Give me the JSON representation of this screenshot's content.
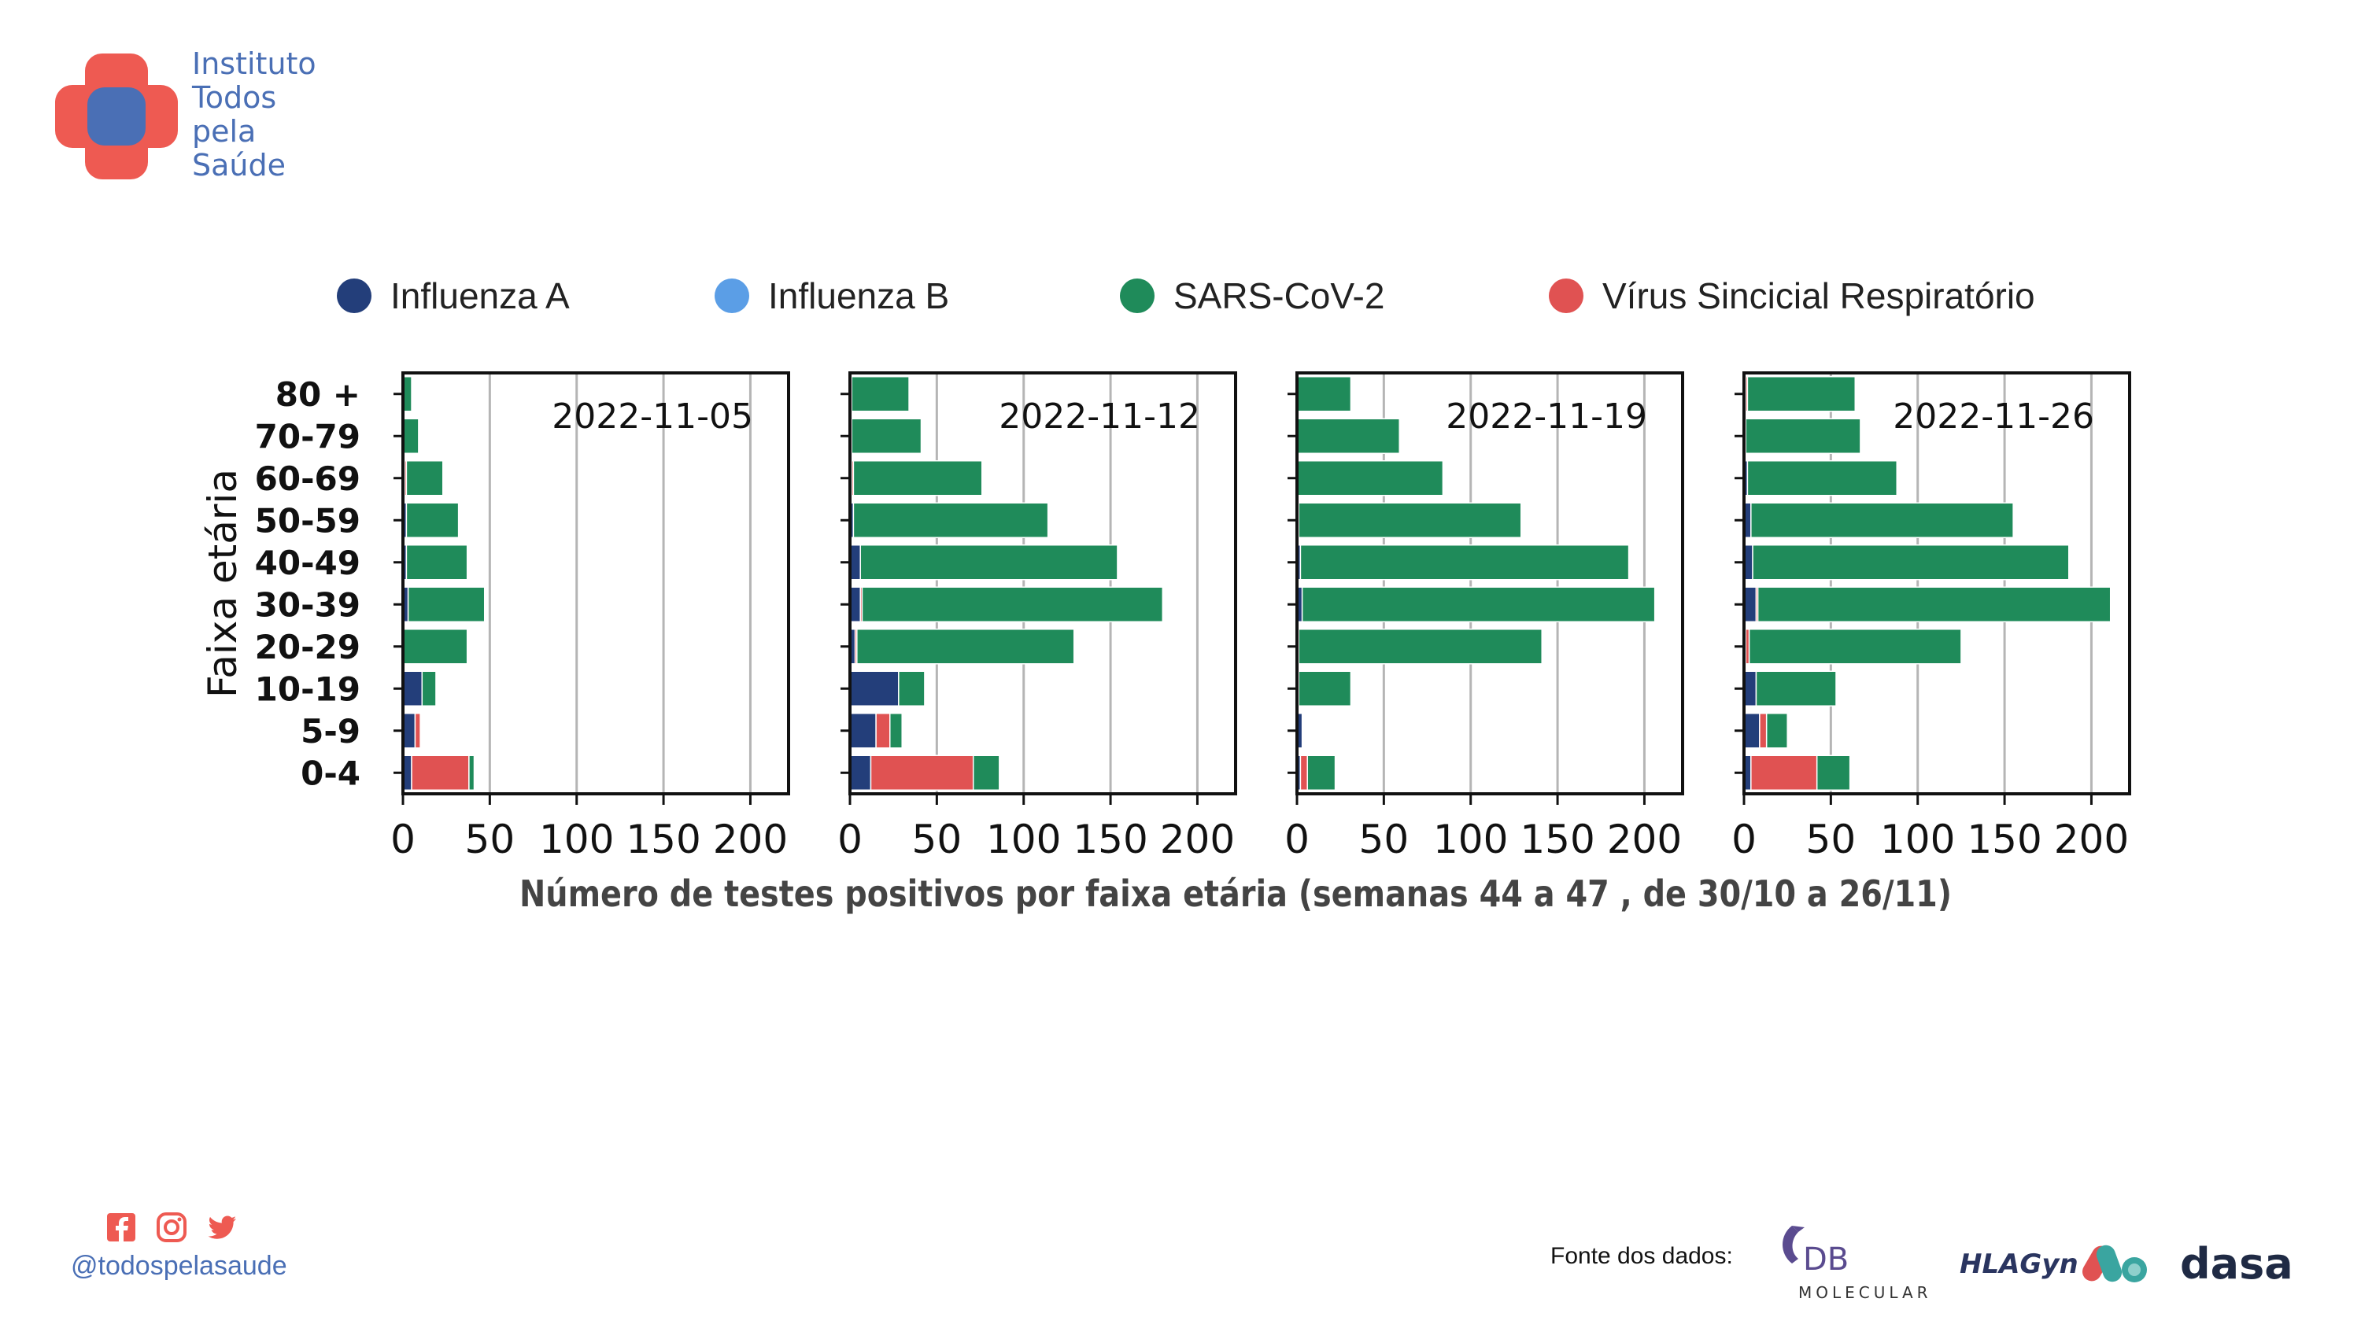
{
  "header": {
    "logo_text": [
      "Instituto",
      "Todos",
      "pela",
      "Saúde"
    ],
    "colors": {
      "red": "#ee5a52",
      "blue": "#4a6fb5"
    }
  },
  "footer": {
    "social_icons": [
      "facebook-icon",
      "instagram-icon",
      "twitter-icon"
    ],
    "handle": "@todospelasaude",
    "sources_label": "Fonte dos dados:",
    "source_logos": [
      {
        "name": "db-molecular-logo",
        "text": "DB MOLECULAR"
      },
      {
        "name": "hlagyn-logo",
        "text": "HLAGyn"
      },
      {
        "name": "dasa-logo",
        "text": "DASA"
      }
    ]
  },
  "chart_data": {
    "type": "bar",
    "orientation": "horizontal",
    "stacked": true,
    "ylabel": "Faixa etária",
    "xlabel": "Número de testes positivos por faixa etária (semanas 44 a 47 , de 30/10 a 26/11)",
    "categories": [
      "0-4",
      "5-9",
      "10-19",
      "20-29",
      "30-39",
      "40-49",
      "50-59",
      "60-69",
      "70-79",
      "80 +"
    ],
    "xlim": [
      0,
      222
    ],
    "xticks": [
      0,
      50,
      100,
      150,
      200
    ],
    "grid": "vertical",
    "legend_position": "top",
    "legend": [
      {
        "name": "Influenza A",
        "color": "#233e7a"
      },
      {
        "name": "Influenza B",
        "color": "#5b9ee6"
      },
      {
        "name": "SARS-CoV-2",
        "color": "#1f8b5a"
      },
      {
        "name": "Vírus Sincicial Respiratório",
        "color": "#e05252"
      }
    ],
    "panels": [
      {
        "title": "2022-11-05",
        "series": [
          {
            "name": "Influenza A",
            "values": [
              5,
              7,
              11,
              0,
              3,
              2,
              2,
              1,
              0,
              0
            ]
          },
          {
            "name": "Influenza B",
            "values": [
              0,
              0,
              0,
              0,
              0,
              0,
              0,
              0,
              0,
              0
            ]
          },
          {
            "name": "Vírus Sincicial Respiratório",
            "values": [
              33,
              3,
              0,
              0,
              0,
              0,
              0,
              1,
              0,
              0
            ]
          },
          {
            "name": "SARS-CoV-2",
            "values": [
              3,
              0,
              8,
              37,
              44,
              35,
              30,
              21,
              9,
              5
            ]
          }
        ]
      },
      {
        "title": "2022-11-12",
        "series": [
          {
            "name": "Influenza A",
            "values": [
              12,
              15,
              28,
              3,
              6,
              6,
              2,
              1,
              1,
              1
            ]
          },
          {
            "name": "Influenza B",
            "values": [
              0,
              0,
              0,
              0,
              0,
              0,
              0,
              0,
              0,
              0
            ]
          },
          {
            "name": "Vírus Sincicial Respiratório",
            "values": [
              59,
              8,
              0,
              1,
              1,
              0,
              0,
              1,
              0,
              0
            ]
          },
          {
            "name": "SARS-CoV-2",
            "values": [
              15,
              7,
              15,
              125,
              173,
              148,
              112,
              74,
              40,
              33
            ]
          }
        ]
      },
      {
        "title": "2022-11-19",
        "series": [
          {
            "name": "Influenza A",
            "values": [
              2,
              3,
              1,
              1,
              3,
              2,
              1,
              0,
              0,
              0
            ]
          },
          {
            "name": "Influenza B",
            "values": [
              0,
              0,
              0,
              0,
              0,
              0,
              0,
              0,
              0,
              0
            ]
          },
          {
            "name": "Vírus Sincicial Respiratório",
            "values": [
              4,
              0,
              0,
              0,
              0,
              0,
              0,
              0,
              0,
              0
            ]
          },
          {
            "name": "SARS-CoV-2",
            "values": [
              16,
              0,
              30,
              140,
              203,
              189,
              128,
              84,
              59,
              31
            ]
          }
        ]
      },
      {
        "title": "2022-11-26",
        "series": [
          {
            "name": "Influenza A",
            "values": [
              4,
              9,
              7,
              1,
              7,
              5,
              4,
              2,
              1,
              1
            ]
          },
          {
            "name": "Influenza B",
            "values": [
              0,
              0,
              0,
              0,
              0,
              0,
              0,
              0,
              0,
              0
            ]
          },
          {
            "name": "Vírus Sincicial Respiratório",
            "values": [
              38,
              4,
              0,
              2,
              1,
              0,
              0,
              0,
              0,
              1
            ]
          },
          {
            "name": "SARS-CoV-2",
            "values": [
              19,
              12,
              46,
              122,
              203,
              182,
              151,
              86,
              66,
              62
            ]
          }
        ]
      }
    ]
  }
}
